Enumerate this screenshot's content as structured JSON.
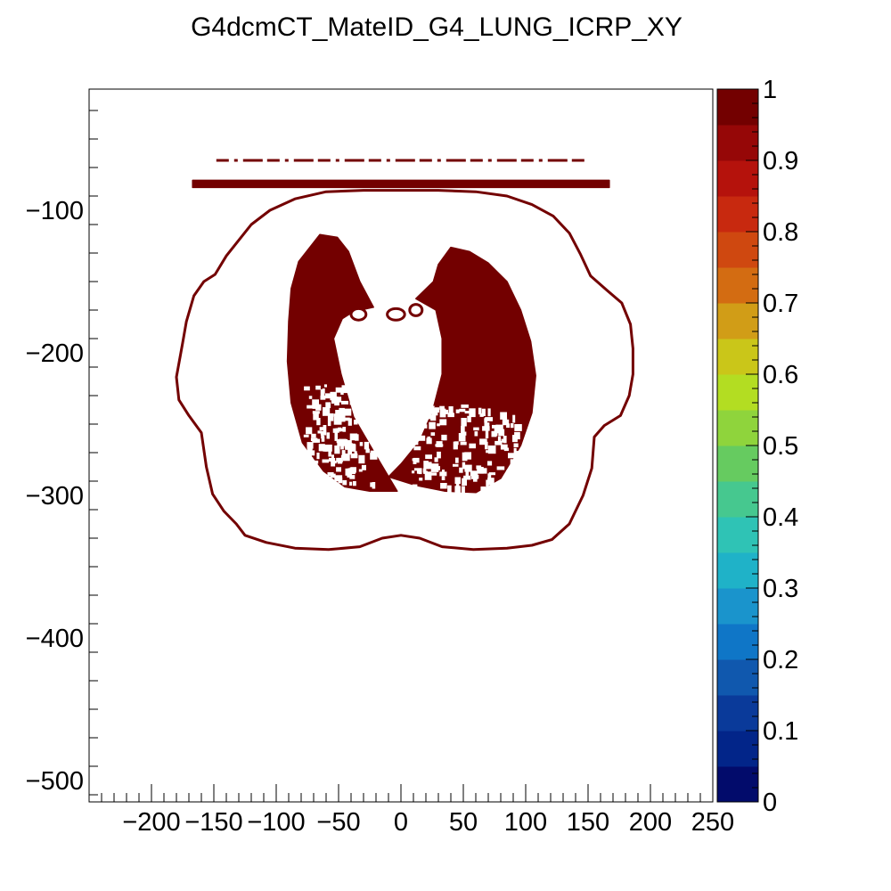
{
  "chart_data": {
    "type": "heatmap",
    "title": "G4dcmCT_MateID_G4_LUNG_ICRP_XY",
    "xlabel": "",
    "ylabel": "",
    "xlim": [
      -250,
      250
    ],
    "ylim": [
      -515,
      -15
    ],
    "x_ticks": [
      -200,
      -150,
      -100,
      -50,
      0,
      50,
      100,
      150,
      200,
      250
    ],
    "x_tick_labels": [
      "−200",
      "−150",
      "−100",
      "−50",
      "0",
      "50",
      "100",
      "150",
      "200",
      "250"
    ],
    "y_ticks": [
      -100,
      -200,
      -300,
      -400,
      -500
    ],
    "y_tick_labels": [
      "−100",
      "−200",
      "−300",
      "−400",
      "−500"
    ],
    "grid": false,
    "legend": "none",
    "colorbar": {
      "min": 0,
      "max": 1,
      "tick_values": [
        0,
        0.1,
        0.2,
        0.3,
        0.4,
        0.5,
        0.6,
        0.7,
        0.8,
        0.9,
        1
      ],
      "tick_labels": [
        "0",
        "0.1",
        "0.2",
        "0.3",
        "0.4",
        "0.5",
        "0.6",
        "0.7",
        "0.8",
        "0.9",
        "1"
      ],
      "colors": [
        "#020b6b",
        "#022589",
        "#0a3a9a",
        "#1058ae",
        "#0f76c7",
        "#1a94cc",
        "#1fb2c8",
        "#2fc3b5",
        "#46c88f",
        "#66cb60",
        "#8fd43c",
        "#b3dd22",
        "#cac619",
        "#d19d17",
        "#d36c12",
        "#cf4810",
        "#c8290f",
        "#b5120c",
        "#960707",
        "#730000"
      ]
    },
    "fill_value": 1,
    "fill_color": "#730000",
    "regions": [
      {
        "name": "body-contour",
        "points": [
          [
            -175,
            -193
          ],
          [
            -172,
            -178
          ],
          [
            -166,
            -160
          ],
          [
            -158,
            -150
          ],
          [
            -149,
            -145
          ],
          [
            -140,
            -132
          ],
          [
            -130,
            -121
          ],
          [
            -120,
            -110
          ],
          [
            -105,
            -100
          ],
          [
            -85,
            -92
          ],
          [
            -60,
            -87
          ],
          [
            -30,
            -86
          ],
          [
            0,
            -86
          ],
          [
            30,
            -86
          ],
          [
            60,
            -87
          ],
          [
            85,
            -90
          ],
          [
            105,
            -96
          ],
          [
            122,
            -104
          ],
          [
            135,
            -116
          ],
          [
            144,
            -131
          ],
          [
            152,
            -146
          ],
          [
            165,
            -156
          ],
          [
            177,
            -165
          ],
          [
            184,
            -180
          ],
          [
            186,
            -197
          ],
          [
            186,
            -215
          ],
          [
            183,
            -230
          ],
          [
            176,
            -244
          ],
          [
            163,
            -251
          ],
          [
            155,
            -259
          ],
          [
            153,
            -281
          ],
          [
            146,
            -300
          ],
          [
            135,
            -320
          ],
          [
            121,
            -331
          ],
          [
            105,
            -335
          ],
          [
            85,
            -337
          ],
          [
            58,
            -338
          ],
          [
            33,
            -336
          ],
          [
            15,
            -330
          ],
          [
            0,
            -328
          ],
          [
            -15,
            -330
          ],
          [
            -33,
            -336
          ],
          [
            -58,
            -338
          ],
          [
            -85,
            -337
          ],
          [
            -108,
            -333
          ],
          [
            -125,
            -328
          ],
          [
            -132,
            -320
          ],
          [
            -142,
            -311
          ],
          [
            -151,
            -299
          ],
          [
            -156,
            -280
          ],
          [
            -160,
            -256
          ],
          [
            -170,
            -244
          ],
          [
            -178,
            -233
          ],
          [
            -180,
            -217
          ]
        ]
      },
      {
        "name": "left-lung",
        "points": [
          [
            -65,
            -117
          ],
          [
            -51,
            -119
          ],
          [
            -42,
            -129
          ],
          [
            -33,
            -150
          ],
          [
            -22,
            -168
          ],
          [
            -38,
            -171
          ],
          [
            -47,
            -176
          ],
          [
            -54,
            -190
          ],
          [
            -48,
            -215
          ],
          [
            -38,
            -245
          ],
          [
            -20,
            -272
          ],
          [
            -3,
            -297
          ],
          [
            -25,
            -297
          ],
          [
            -45,
            -294
          ],
          [
            -62,
            -283
          ],
          [
            -79,
            -263
          ],
          [
            -88,
            -235
          ],
          [
            -91,
            -206
          ],
          [
            -90,
            -178
          ],
          [
            -88,
            -155
          ],
          [
            -82,
            -136
          ]
        ]
      },
      {
        "name": "right-lung",
        "points": [
          [
            40,
            -126
          ],
          [
            55,
            -129
          ],
          [
            70,
            -137
          ],
          [
            85,
            -150
          ],
          [
            96,
            -170
          ],
          [
            104,
            -192
          ],
          [
            108,
            -216
          ],
          [
            105,
            -242
          ],
          [
            96,
            -265
          ],
          [
            80,
            -288
          ],
          [
            60,
            -298
          ],
          [
            35,
            -297
          ],
          [
            12,
            -293
          ],
          [
            -10,
            -287
          ],
          [
            0,
            -278
          ],
          [
            15,
            -262
          ],
          [
            25,
            -242
          ],
          [
            33,
            -215
          ],
          [
            33,
            -190
          ],
          [
            28,
            -170
          ],
          [
            20,
            -166
          ],
          [
            12,
            -162
          ],
          [
            26,
            -150
          ],
          [
            30,
            -138
          ]
        ]
      },
      {
        "name": "table-bar",
        "points": [
          [
            -167,
            -79
          ],
          [
            167,
            -79
          ],
          [
            167,
            -84
          ],
          [
            -167,
            -84
          ]
        ]
      }
    ],
    "inner_holes": [
      {
        "name": "left-lung-lower-lobe",
        "points": [
          [
            -72,
            -235
          ],
          [
            -60,
            -222
          ],
          [
            -47,
            -245
          ],
          [
            -35,
            -268
          ],
          [
            -22,
            -287
          ],
          [
            -45,
            -291
          ],
          [
            -63,
            -280
          ],
          [
            -78,
            -262
          ]
        ]
      },
      {
        "name": "right-lung-lower-lobe",
        "points": [
          [
            8,
            -285
          ],
          [
            35,
            -262
          ],
          [
            62,
            -255
          ],
          [
            85,
            -235
          ],
          [
            92,
            -262
          ],
          [
            76,
            -284
          ],
          [
            55,
            -294
          ],
          [
            30,
            -294
          ]
        ]
      }
    ],
    "dashed_line": {
      "y": -65,
      "x_from": -148,
      "x_to": 148
    },
    "airway_rings": [
      {
        "cx": -34,
        "cy": -173,
        "rx": 6,
        "ry": 4
      },
      {
        "cx": -4,
        "cy": -173,
        "rx": 7,
        "ry": 4
      },
      {
        "cx": 12,
        "cy": -170,
        "rx": 5,
        "ry": 4
      }
    ]
  }
}
